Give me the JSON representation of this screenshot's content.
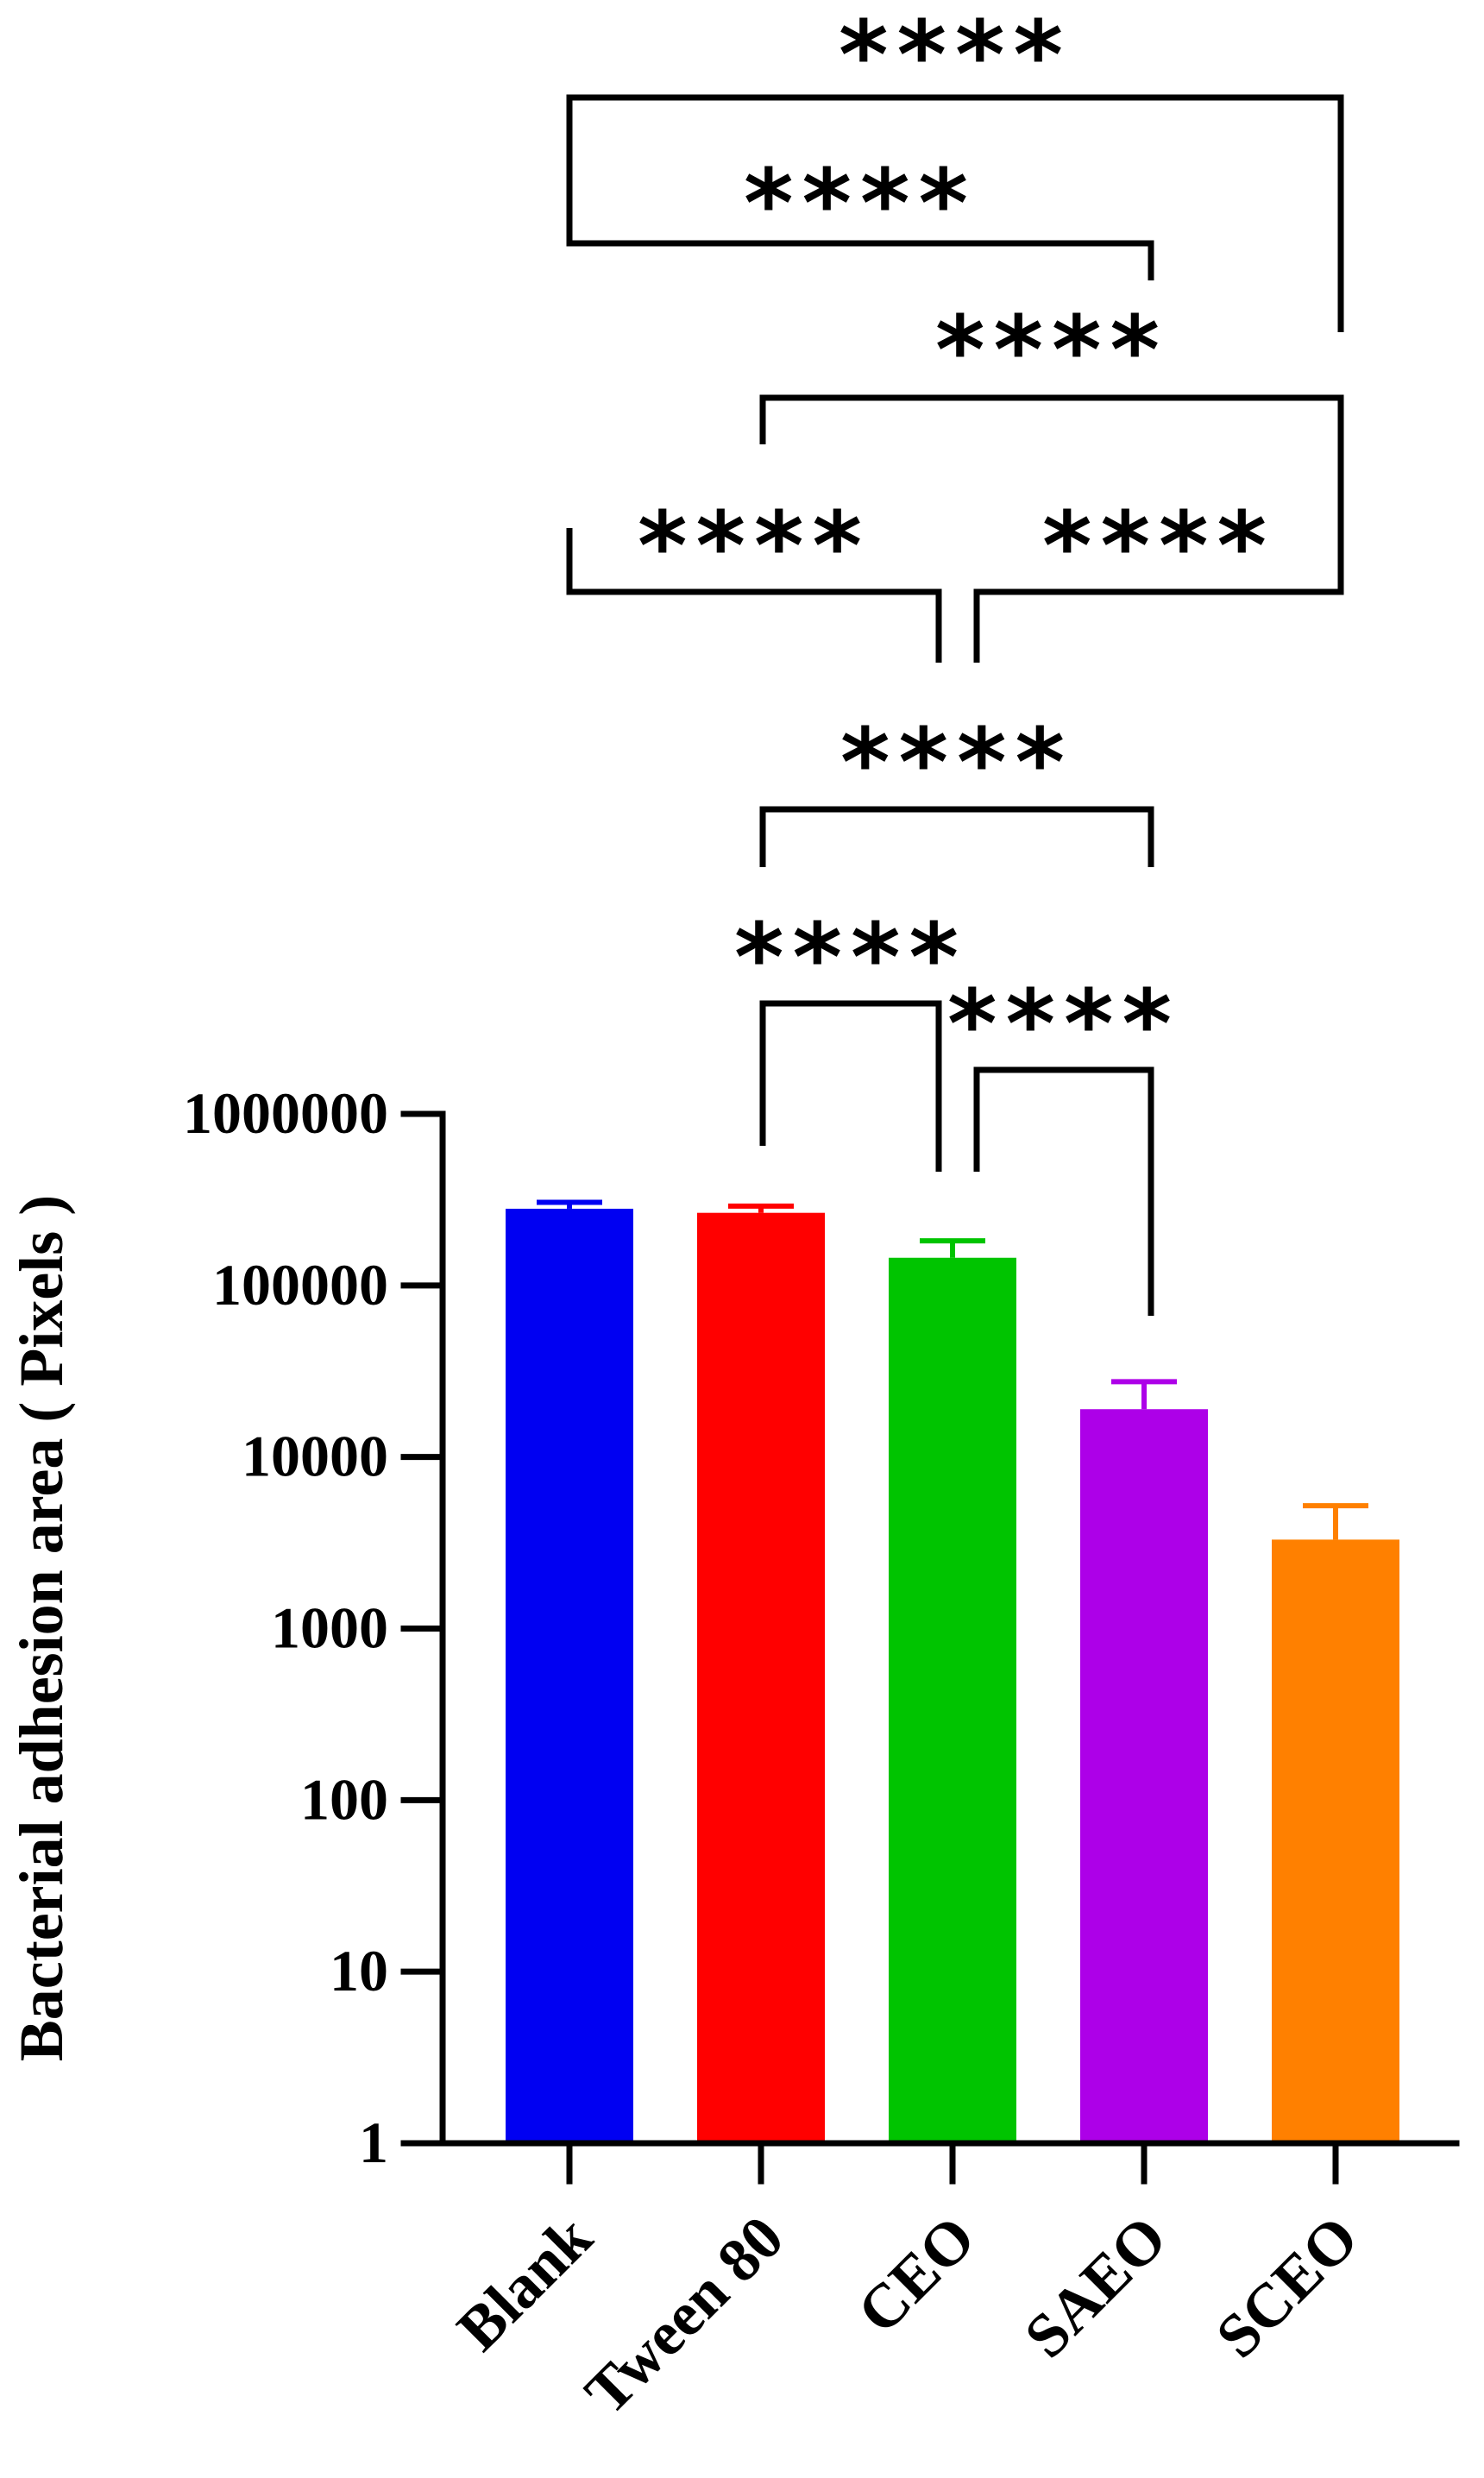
{
  "chart_data": {
    "type": "bar",
    "title": "",
    "xlabel": "",
    "ylabel": "Bacterial adhesion area ( Pixels )",
    "yscale": "log",
    "ylim": [
      1,
      1000000
    ],
    "yticks": [
      1,
      10,
      100,
      1000,
      10000,
      100000,
      1000000
    ],
    "ytick_labels": [
      "1",
      "10",
      "100",
      "1000",
      "10000",
      "100000",
      "1000000"
    ],
    "grid": false,
    "legend": "none",
    "categories": [
      "Blank",
      "Tween 80",
      "CEO",
      "SAEO",
      "SCEO"
    ],
    "values": [
      280000,
      265000,
      145000,
      19000,
      3300
    ],
    "error_upper": [
      305000,
      290000,
      182000,
      27500,
      5200
    ],
    "colors": [
      "#0000f2",
      "#ff0000",
      "#00c400",
      "#ad00e8",
      "#ff8000"
    ],
    "comparisons": [
      {
        "from": "Blank",
        "to": "SCEO",
        "label": "****"
      },
      {
        "from": "Blank",
        "to": "SAEO",
        "label": "****"
      },
      {
        "from": "Tween 80",
        "to": "SCEO",
        "label": "****"
      },
      {
        "from": "Blank",
        "to": "CEO",
        "label": "****"
      },
      {
        "from": "CEO",
        "to": "SCEO",
        "label": "****"
      },
      {
        "from": "Tween 80",
        "to": "SAEO",
        "label": "****"
      },
      {
        "from": "Tween 80",
        "to": "CEO",
        "label": "****"
      },
      {
        "from": "CEO",
        "to": "SAEO",
        "label": "****"
      }
    ]
  }
}
